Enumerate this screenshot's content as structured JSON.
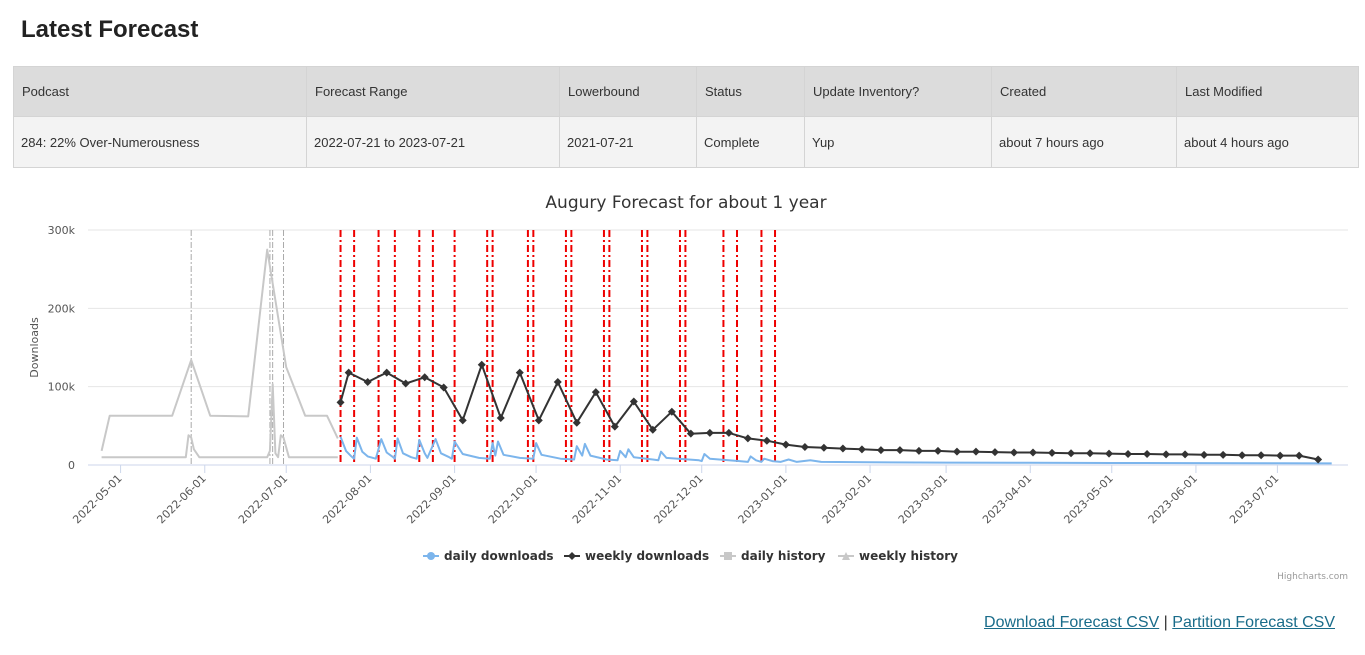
{
  "page": {
    "title": "Latest Forecast"
  },
  "table": {
    "headers": [
      "Podcast",
      "Forecast Range",
      "Lowerbound",
      "Status",
      "Update Inventory?",
      "Created",
      "Last Modified"
    ],
    "row": [
      "284: 22% Over-Numerousness",
      "2022-07-21 to 2023-07-21",
      "2021-07-21",
      "Complete",
      "Yup",
      "about 7 hours ago",
      "about 4 hours ago"
    ]
  },
  "links": {
    "download": "Download Forecast CSV",
    "separator": "|",
    "partition": "Partition Forecast CSV"
  },
  "chart_data": {
    "type": "line",
    "title": "Augury Forecast for about 1 year",
    "ylabel": "Downloads",
    "xlabel": "",
    "ylim": [
      0,
      300000
    ],
    "y_ticks": [
      "0",
      "100k",
      "200k",
      "300k"
    ],
    "x_ticks": [
      "2022-05-01",
      "2022-06-01",
      "2022-07-01",
      "2022-08-01",
      "2022-09-01",
      "2022-10-01",
      "2022-11-01",
      "2022-12-01",
      "2023-01-01",
      "2023-02-01",
      "2023-03-01",
      "2023-04-01",
      "2023-05-01",
      "2023-06-01",
      "2023-07-01"
    ],
    "grid": true,
    "legend": "bottom-center",
    "credit": "Highcharts.com",
    "colors": {
      "daily_downloads": "#7cb5ec",
      "weekly_downloads": "#333333",
      "daily_history": "#c8c8c8",
      "weekly_history": "#c8c8c8",
      "event_lines": "#ee0000"
    },
    "series": [
      {
        "name": "daily downloads",
        "points": [
          [
            "2022-07-21",
            36000
          ],
          [
            "2022-07-23",
            18000
          ],
          [
            "2022-07-25",
            11000
          ],
          [
            "2022-07-26",
            8000
          ],
          [
            "2022-07-27",
            35000
          ],
          [
            "2022-07-29",
            17000
          ],
          [
            "2022-07-31",
            11000
          ],
          [
            "2022-08-03",
            8000
          ],
          [
            "2022-08-05",
            33000
          ],
          [
            "2022-08-07",
            16000
          ],
          [
            "2022-08-09",
            11000
          ],
          [
            "2022-08-10",
            8000
          ],
          [
            "2022-08-11",
            34000
          ],
          [
            "2022-08-13",
            15000
          ],
          [
            "2022-08-16",
            10000
          ],
          [
            "2022-08-18",
            8000
          ],
          [
            "2022-08-19",
            32000
          ],
          [
            "2022-08-21",
            15000
          ],
          [
            "2022-08-22",
            9000
          ],
          [
            "2022-08-25",
            33000
          ],
          [
            "2022-08-27",
            15000
          ],
          [
            "2022-08-30",
            10000
          ],
          [
            "2022-08-31",
            8000
          ],
          [
            "2022-09-01",
            30000
          ],
          [
            "2022-09-04",
            14000
          ],
          [
            "2022-09-10",
            9000
          ],
          [
            "2022-09-14",
            8000
          ],
          [
            "2022-09-15",
            28000
          ],
          [
            "2022-09-16",
            12000
          ],
          [
            "2022-09-17",
            30000
          ],
          [
            "2022-09-19",
            13000
          ],
          [
            "2022-09-25",
            9000
          ],
          [
            "2022-09-30",
            8000
          ],
          [
            "2022-10-01",
            28000
          ],
          [
            "2022-10-03",
            13000
          ],
          [
            "2022-10-10",
            8000
          ],
          [
            "2022-10-15",
            7000
          ],
          [
            "2022-10-16",
            24000
          ],
          [
            "2022-10-18",
            12000
          ],
          [
            "2022-10-19",
            27000
          ],
          [
            "2022-10-21",
            12000
          ],
          [
            "2022-10-27",
            7000
          ],
          [
            "2022-10-31",
            6000
          ],
          [
            "2022-11-01",
            18000
          ],
          [
            "2022-11-03",
            10000
          ],
          [
            "2022-11-04",
            20000
          ],
          [
            "2022-11-06",
            10000
          ],
          [
            "2022-11-13",
            7000
          ],
          [
            "2022-11-15",
            6000
          ],
          [
            "2022-11-16",
            17000
          ],
          [
            "2022-11-18",
            9000
          ],
          [
            "2022-11-30",
            6000
          ],
          [
            "2022-12-01",
            5000
          ],
          [
            "2022-12-02",
            14000
          ],
          [
            "2022-12-04",
            8000
          ],
          [
            "2022-12-15",
            5000
          ],
          [
            "2022-12-18",
            4000
          ],
          [
            "2022-12-19",
            11000
          ],
          [
            "2022-12-21",
            6000
          ],
          [
            "2022-12-23",
            4000
          ],
          [
            "2022-12-24",
            8000
          ],
          [
            "2022-12-27",
            5000
          ],
          [
            "2022-12-30",
            4000
          ],
          [
            "2023-01-02",
            7000
          ],
          [
            "2023-01-05",
            4000
          ],
          [
            "2023-01-10",
            6000
          ],
          [
            "2023-01-14",
            4000
          ],
          [
            "2023-02-01",
            3500
          ],
          [
            "2023-03-01",
            3000
          ],
          [
            "2023-04-01",
            2800
          ],
          [
            "2023-05-01",
            2600
          ],
          [
            "2023-06-01",
            2400
          ],
          [
            "2023-07-01",
            2200
          ],
          [
            "2023-07-21",
            2000
          ]
        ]
      },
      {
        "name": "weekly downloads",
        "points": [
          [
            "2022-07-21",
            80000
          ],
          [
            "2022-07-24",
            118000
          ],
          [
            "2022-07-31",
            106000
          ],
          [
            "2022-08-07",
            118000
          ],
          [
            "2022-08-14",
            104000
          ],
          [
            "2022-08-21",
            112000
          ],
          [
            "2022-08-28",
            99000
          ],
          [
            "2022-09-04",
            57000
          ],
          [
            "2022-09-11",
            128000
          ],
          [
            "2022-09-18",
            60000
          ],
          [
            "2022-09-25",
            118000
          ],
          [
            "2022-10-02",
            57000
          ],
          [
            "2022-10-09",
            106000
          ],
          [
            "2022-10-16",
            54000
          ],
          [
            "2022-10-23",
            93000
          ],
          [
            "2022-10-30",
            49000
          ],
          [
            "2022-11-06",
            81000
          ],
          [
            "2022-11-13",
            45000
          ],
          [
            "2022-11-20",
            68000
          ],
          [
            "2022-11-27",
            40000
          ],
          [
            "2022-12-04",
            41000
          ],
          [
            "2022-12-11",
            41000
          ],
          [
            "2022-12-18",
            34000
          ],
          [
            "2022-12-25",
            31000
          ],
          [
            "2023-01-01",
            26000
          ],
          [
            "2023-01-08",
            23000
          ],
          [
            "2023-01-15",
            22000
          ],
          [
            "2023-01-22",
            21000
          ],
          [
            "2023-01-29",
            20000
          ],
          [
            "2023-02-05",
            19000
          ],
          [
            "2023-02-12",
            19000
          ],
          [
            "2023-02-19",
            18000
          ],
          [
            "2023-02-26",
            18000
          ],
          [
            "2023-03-05",
            17000
          ],
          [
            "2023-03-12",
            17000
          ],
          [
            "2023-03-19",
            16500
          ],
          [
            "2023-03-26",
            16000
          ],
          [
            "2023-04-02",
            16000
          ],
          [
            "2023-04-09",
            15500
          ],
          [
            "2023-04-16",
            15000
          ],
          [
            "2023-04-23",
            15000
          ],
          [
            "2023-04-30",
            14500
          ],
          [
            "2023-05-07",
            14000
          ],
          [
            "2023-05-14",
            14000
          ],
          [
            "2023-05-21",
            13500
          ],
          [
            "2023-05-28",
            13500
          ],
          [
            "2023-06-04",
            13000
          ],
          [
            "2023-06-11",
            13000
          ],
          [
            "2023-06-18",
            12500
          ],
          [
            "2023-06-25",
            12500
          ],
          [
            "2023-07-02",
            12000
          ],
          [
            "2023-07-09",
            12000
          ],
          [
            "2023-07-16",
            7000
          ]
        ]
      },
      {
        "name": "daily history",
        "points": [
          [
            "2022-04-24",
            10000
          ],
          [
            "2022-05-25",
            10000
          ],
          [
            "2022-05-26",
            38000
          ],
          [
            "2022-05-27",
            35000
          ],
          [
            "2022-05-28",
            20000
          ],
          [
            "2022-05-30",
            10000
          ],
          [
            "2022-06-24",
            10000
          ],
          [
            "2022-06-25",
            18000
          ],
          [
            "2022-06-26",
            103000
          ],
          [
            "2022-06-27",
            15000
          ],
          [
            "2022-06-28",
            10000
          ],
          [
            "2022-06-29",
            38000
          ],
          [
            "2022-06-30",
            35000
          ],
          [
            "2022-07-02",
            10000
          ],
          [
            "2022-07-20",
            10000
          ]
        ]
      },
      {
        "name": "weekly history",
        "points": [
          [
            "2022-04-24",
            18000
          ],
          [
            "2022-04-27",
            63000
          ],
          [
            "2022-05-20",
            63000
          ],
          [
            "2022-05-27",
            134000
          ],
          [
            "2022-06-03",
            63000
          ],
          [
            "2022-06-17",
            62000
          ],
          [
            "2022-06-24",
            275000
          ],
          [
            "2022-07-01",
            125000
          ],
          [
            "2022-07-08",
            63000
          ],
          [
            "2022-07-16",
            63000
          ],
          [
            "2022-07-20",
            34000
          ]
        ]
      }
    ],
    "event_lines": [
      "2022-07-21",
      "2022-07-26",
      "2022-08-04",
      "2022-08-10",
      "2022-08-19",
      "2022-08-24",
      "2022-09-01",
      "2022-09-13",
      "2022-09-15",
      "2022-09-28",
      "2022-09-30",
      "2022-10-12",
      "2022-10-14",
      "2022-10-26",
      "2022-10-28",
      "2022-11-09",
      "2022-11-11",
      "2022-11-23",
      "2022-11-25",
      "2022-12-09",
      "2022-12-14",
      "2022-12-23",
      "2022-12-28"
    ],
    "history_event_lines": [
      "2022-05-27",
      "2022-06-25",
      "2022-06-26",
      "2022-06-30"
    ]
  }
}
